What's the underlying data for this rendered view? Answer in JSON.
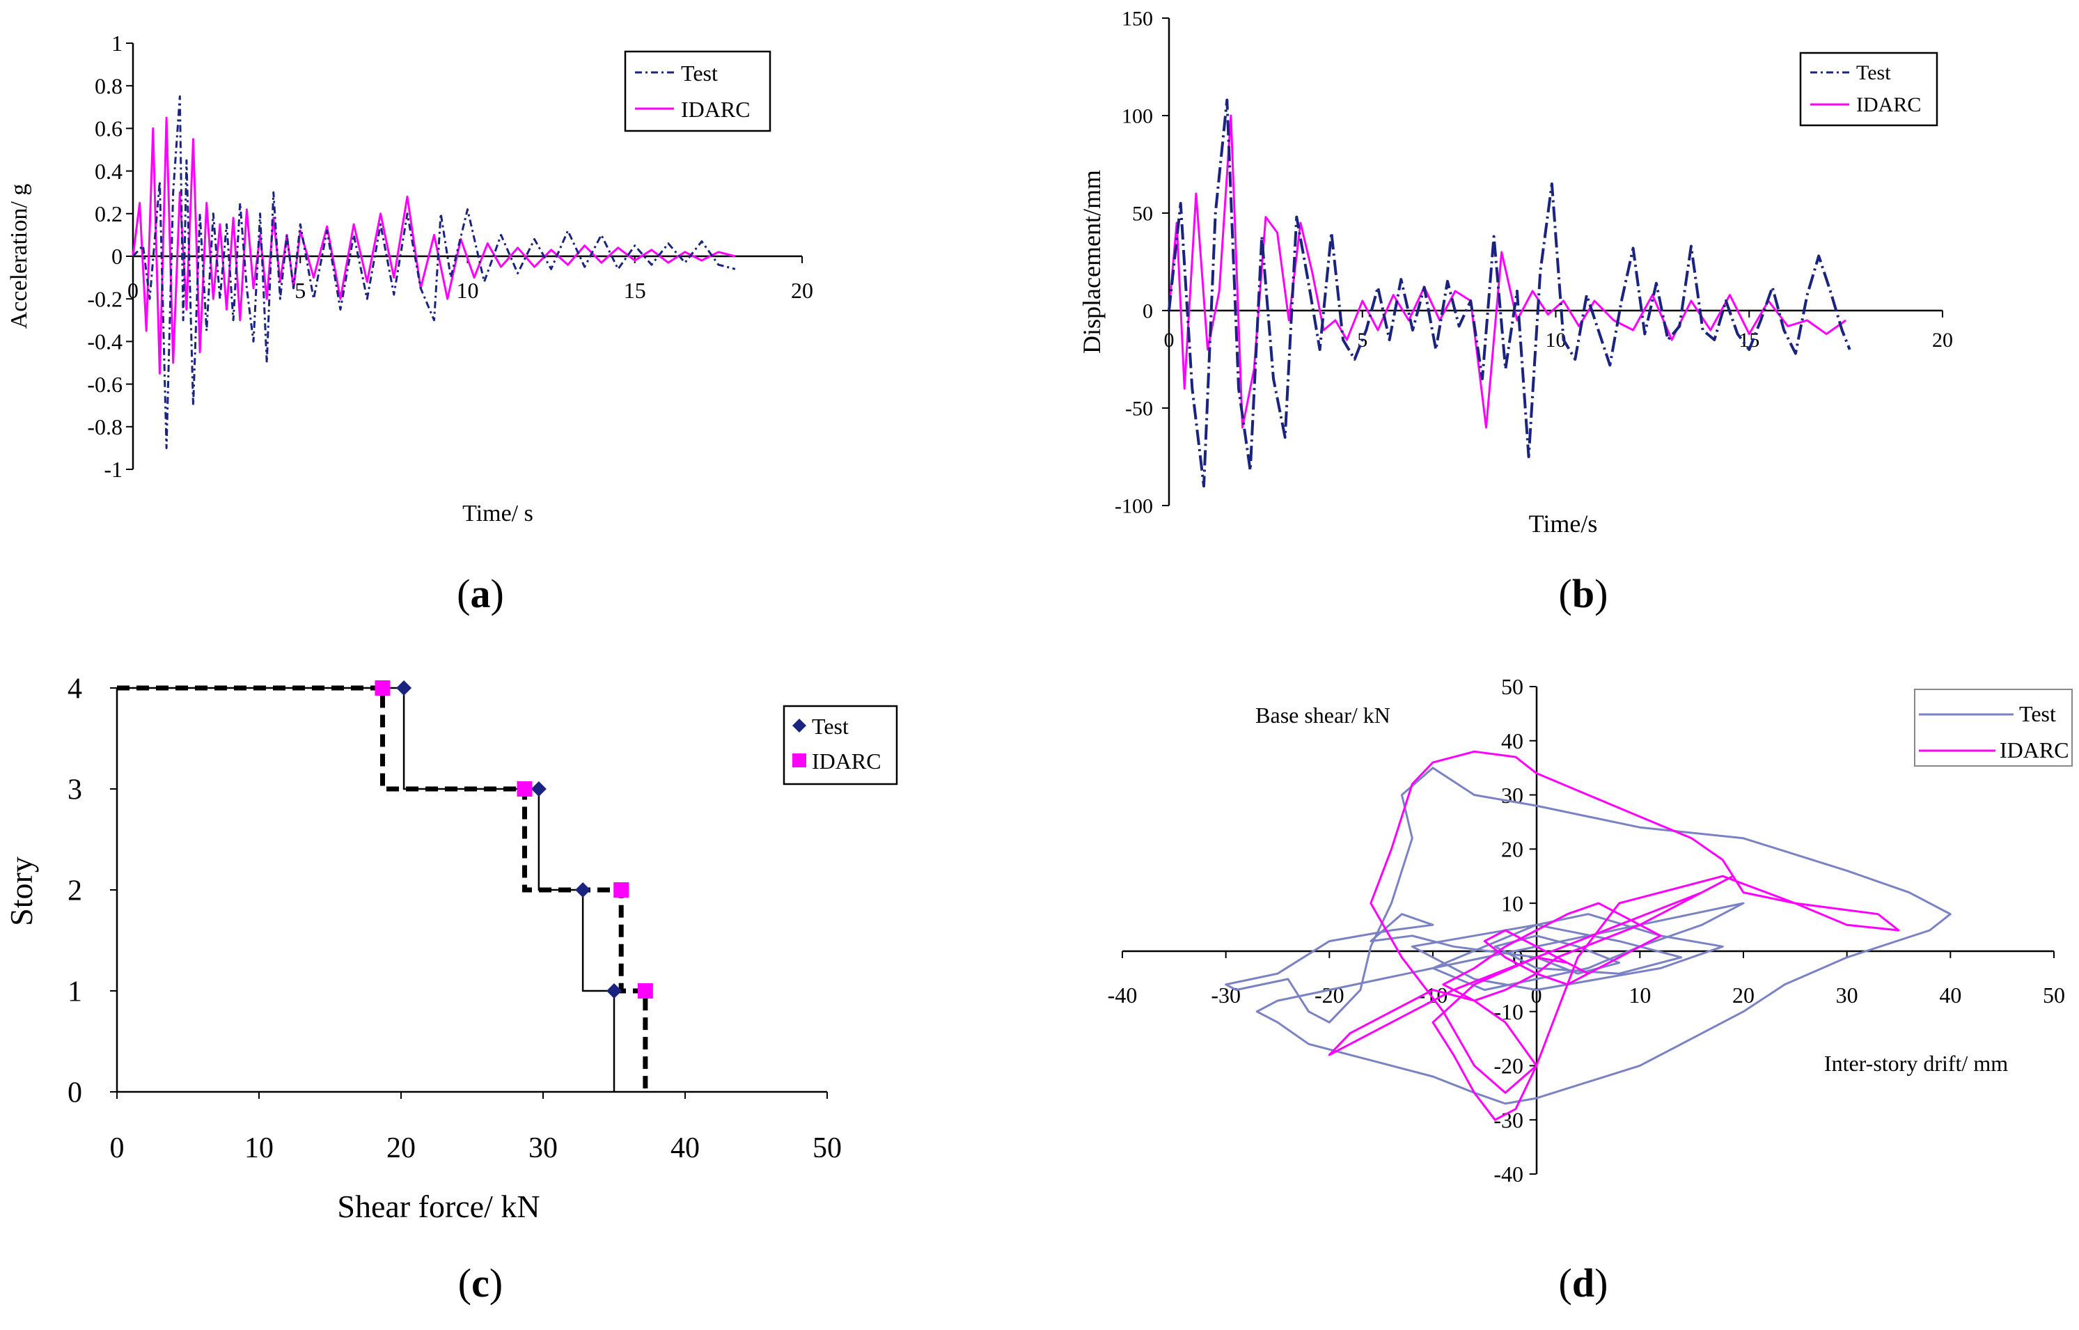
{
  "figure": {
    "panel_labels": [
      "a",
      "b",
      "c",
      "d"
    ],
    "colors": {
      "test": "#1a237e",
      "idarc": "#ff00ff",
      "test_d": "#7b82c4",
      "axis": "#000000",
      "dark": "#000000"
    }
  },
  "chart_data": [
    {
      "id": "a",
      "type": "line",
      "title": "",
      "xlabel": "Time/ s",
      "ylabel": "Acceleration/ g",
      "xlim": [
        0,
        20
      ],
      "ylim": [
        -1,
        1
      ],
      "x_ticks": [
        0,
        5,
        10,
        15,
        20
      ],
      "x_tick_labels": [
        "0",
        "5",
        "10",
        "15",
        "20"
      ],
      "y_ticks": [
        1,
        0.8,
        0.6,
        0.4,
        0.2,
        0,
        -0.2,
        -0.4,
        -0.6,
        -0.8,
        -1
      ],
      "y_tick_labels": [
        "1",
        "0.8",
        "0.6",
        "0.4",
        "0.2",
        "0",
        "-0.2",
        "-0.4",
        "-0.6",
        "-0.8",
        "-1"
      ],
      "legend": [
        "Test",
        "IDARC"
      ],
      "legend_position": "top-right",
      "series": [
        {
          "name": "Test",
          "x": [
            0,
            0.3,
            0.5,
            0.8,
            1.0,
            1.2,
            1.4,
            1.5,
            1.6,
            1.8,
            2.0,
            2.2,
            2.4,
            2.6,
            2.8,
            3.0,
            3.2,
            3.4,
            3.6,
            3.8,
            4.0,
            4.2,
            4.4,
            4.6,
            4.8,
            5.0,
            5.4,
            5.8,
            6.2,
            6.6,
            7.0,
            7.4,
            7.8,
            8.2,
            8.6,
            9.0,
            9.2,
            9.5,
            10.0,
            10.5,
            11.0,
            11.5,
            12.0,
            12.5,
            13.0,
            13.5,
            14.0,
            14.5,
            15.0,
            15.5,
            16.0,
            16.5,
            17.0,
            17.5,
            18.0
          ],
          "y": [
            0,
            0.05,
            -0.2,
            0.35,
            -0.9,
            0.3,
            0.75,
            -0.3,
            0.45,
            -0.7,
            0.2,
            -0.35,
            0.2,
            -0.2,
            0.15,
            -0.3,
            0.25,
            -0.15,
            -0.4,
            0.2,
            -0.5,
            0.3,
            -0.2,
            0.1,
            -0.15,
            0.15,
            -0.2,
            0.12,
            -0.25,
            0.1,
            -0.2,
            0.15,
            -0.18,
            0.2,
            -0.15,
            -0.3,
            0.2,
            -0.1,
            0.22,
            -0.12,
            0.1,
            -0.08,
            0.08,
            -0.06,
            0.12,
            -0.05,
            0.1,
            -0.06,
            0.05,
            -0.04,
            0.06,
            -0.03,
            0.07,
            -0.04,
            -0.06
          ]
        },
        {
          "name": "IDARC",
          "x": [
            0,
            0.2,
            0.4,
            0.6,
            0.8,
            1.0,
            1.2,
            1.4,
            1.6,
            1.8,
            2.0,
            2.2,
            2.4,
            2.6,
            2.8,
            3.0,
            3.2,
            3.4,
            3.6,
            3.8,
            4.0,
            4.2,
            4.4,
            4.6,
            4.8,
            5.0,
            5.4,
            5.8,
            6.2,
            6.6,
            7.0,
            7.4,
            7.8,
            8.2,
            8.6,
            9.0,
            9.4,
            9.8,
            10.2,
            10.6,
            11.0,
            11.5,
            12.0,
            12.5,
            13.0,
            13.5,
            14.0,
            14.5,
            15.0,
            15.5,
            16.0,
            16.5,
            17.0,
            17.5,
            18.0
          ],
          "y": [
            0,
            0.25,
            -0.35,
            0.6,
            -0.55,
            0.65,
            -0.5,
            0.3,
            -0.25,
            0.55,
            -0.45,
            0.25,
            -0.2,
            0.15,
            -0.25,
            0.18,
            -0.3,
            0.22,
            -0.15,
            0.1,
            -0.2,
            0.18,
            -0.12,
            0.1,
            -0.15,
            0.12,
            -0.1,
            0.14,
            -0.2,
            0.15,
            -0.12,
            0.2,
            -0.1,
            0.28,
            -0.15,
            0.1,
            -0.2,
            0.08,
            -0.1,
            0.06,
            -0.05,
            0.04,
            -0.05,
            0.03,
            -0.04,
            0.05,
            -0.03,
            0.04,
            -0.02,
            0.03,
            -0.03,
            0.02,
            -0.02,
            0.02,
            0
          ]
        }
      ]
    },
    {
      "id": "b",
      "type": "line",
      "title": "",
      "xlabel": "Time/s",
      "ylabel": "Displacement/mm",
      "xlim": [
        0,
        20
      ],
      "ylim": [
        -100,
        150
      ],
      "x_ticks": [
        0,
        5,
        10,
        15,
        20
      ],
      "x_tick_labels": [
        "0",
        "5",
        "10",
        "15",
        "20"
      ],
      "y_ticks": [
        150,
        100,
        50,
        0,
        -50,
        -100
      ],
      "y_tick_labels": [
        "150",
        "100",
        "50",
        "0",
        "-50",
        "-100"
      ],
      "legend": [
        "Test",
        "IDARC"
      ],
      "legend_position": "top-right",
      "series": [
        {
          "name": "Test",
          "x": [
            0,
            0.3,
            0.6,
            0.9,
            1.2,
            1.5,
            1.8,
            2.1,
            2.4,
            2.7,
            3.0,
            3.3,
            3.6,
            3.9,
            4.2,
            4.5,
            4.8,
            5.1,
            5.4,
            5.7,
            6.0,
            6.3,
            6.6,
            6.9,
            7.2,
            7.5,
            7.8,
            8.1,
            8.4,
            8.7,
            9.0,
            9.3,
            9.6,
            9.9,
            10.2,
            10.5,
            10.8,
            11.1,
            11.4,
            11.7,
            12.0,
            12.3,
            12.6,
            12.9,
            13.2,
            13.5,
            13.8,
            14.1,
            14.4,
            14.7,
            15.0,
            15.3,
            15.6,
            15.9,
            16.2,
            16.5,
            16.8,
            17.1,
            17.4,
            17.6
          ],
          "y": [
            0,
            55,
            -40,
            -90,
            50,
            108,
            -40,
            -82,
            38,
            -35,
            -65,
            48,
            15,
            -20,
            40,
            -15,
            -25,
            -10,
            12,
            -15,
            16,
            -10,
            12,
            -20,
            15,
            -8,
            5,
            -35,
            38,
            -30,
            10,
            -75,
            20,
            65,
            -15,
            -25,
            8,
            -10,
            -28,
            5,
            32,
            -12,
            14,
            -15,
            -8,
            33,
            -10,
            -15,
            5,
            -12,
            -20,
            -5,
            12,
            -10,
            -22,
            8,
            28,
            10,
            -10,
            -20
          ]
        },
        {
          "name": "IDARC",
          "x": [
            0,
            0.2,
            0.4,
            0.7,
            1.0,
            1.3,
            1.6,
            1.9,
            2.2,
            2.5,
            2.8,
            3.1,
            3.4,
            3.7,
            4.0,
            4.3,
            4.6,
            5.0,
            5.4,
            5.8,
            6.2,
            6.6,
            7.0,
            7.4,
            7.8,
            8.2,
            8.6,
            9.0,
            9.4,
            9.8,
            10.2,
            10.6,
            11.0,
            11.5,
            12.0,
            12.5,
            13.0,
            13.5,
            14.0,
            14.5,
            15.0,
            15.5,
            16.0,
            16.5,
            17.0,
            17.5
          ],
          "y": [
            0,
            45,
            -40,
            60,
            -20,
            10,
            100,
            -60,
            -30,
            48,
            40,
            -5,
            45,
            20,
            -10,
            -5,
            -15,
            5,
            -10,
            8,
            -5,
            12,
            -5,
            10,
            5,
            -60,
            30,
            -5,
            10,
            -2,
            5,
            -8,
            5,
            -5,
            -10,
            8,
            -15,
            5,
            -10,
            8,
            -12,
            5,
            -8,
            -5,
            -12,
            -5
          ]
        }
      ]
    },
    {
      "id": "c",
      "type": "line",
      "title": "",
      "xlabel": "Shear force/ kN",
      "ylabel": "Story",
      "xlim": [
        0,
        50
      ],
      "ylim": [
        0,
        4
      ],
      "x_ticks": [
        0,
        10,
        20,
        30,
        40,
        50
      ],
      "x_tick_labels": [
        "0",
        "10",
        "20",
        "30",
        "40",
        "50"
      ],
      "y_ticks": [
        0,
        1,
        2,
        3,
        4
      ],
      "y_tick_labels": [
        "0",
        "1",
        "2",
        "3",
        "4"
      ],
      "legend": [
        "Test",
        "IDARC"
      ],
      "legend_position": "top-right",
      "series": [
        {
          "name": "Test",
          "story": [
            4,
            3,
            2,
            1
          ],
          "shear": [
            20.2,
            29.7,
            32.8,
            35.0
          ]
        },
        {
          "name": "IDARC",
          "story": [
            4,
            3,
            2,
            1
          ],
          "shear": [
            18.7,
            28.7,
            35.5,
            37.2
          ]
        }
      ]
    },
    {
      "id": "d",
      "type": "line",
      "title": "",
      "xlabel": "Inter-story drift/ mm",
      "ylabel": "Base shear/ kN",
      "xlim": [
        -40,
        50
      ],
      "ylim": [
        -40,
        50
      ],
      "x_ticks": [
        -40,
        -30,
        -20,
        -10,
        0,
        10,
        20,
        30,
        40,
        50
      ],
      "x_tick_labels": [
        "-40",
        "-30",
        "-20",
        "-10",
        "0",
        "10",
        "20",
        "30",
        "40",
        "50"
      ],
      "y_ticks": [
        50,
        40,
        30,
        20,
        10,
        0,
        -10,
        -20,
        -30,
        -40
      ],
      "y_tick_labels": [
        "50",
        "40",
        "30",
        "20",
        "10",
        "0",
        "-10",
        "-20",
        "-30",
        "-40"
      ],
      "legend": [
        "Test",
        "IDARC"
      ],
      "legend_position": "top-right",
      "series": [
        {
          "name": "Test",
          "x": [
            0,
            -8,
            -12,
            -16,
            -13,
            -10,
            -14,
            -20,
            -25,
            -30,
            -29,
            -24,
            -22,
            -20,
            -19,
            -17,
            -16,
            -14,
            -12,
            -13,
            -10,
            -6,
            0,
            10,
            20,
            30,
            36,
            40,
            38,
            30,
            24,
            20,
            15,
            10,
            0,
            -3,
            -6,
            -10,
            -14,
            -18,
            -22,
            -25,
            -27,
            -25,
            -20,
            -15,
            -10,
            -5,
            0,
            5,
            10,
            15,
            20,
            16,
            10,
            5,
            0,
            -5,
            -10,
            -5,
            0,
            5,
            12,
            18,
            12,
            6,
            0,
            -6,
            -12,
            -6,
            0,
            8,
            14,
            8,
            0,
            -4,
            0,
            4,
            8,
            4,
            0
          ],
          "y": [
            0,
            2,
            4,
            3,
            8,
            6,
            5,
            3,
            -3,
            -5,
            -6,
            -4,
            -10,
            -12,
            -10,
            -6,
            2,
            10,
            22,
            30,
            35,
            30,
            28,
            24,
            22,
            16,
            12,
            8,
            5,
            0,
            -5,
            -10,
            -15,
            -20,
            -26,
            -27,
            -25,
            -22,
            -20,
            -18,
            -16,
            -12,
            -10,
            -8,
            -6,
            -4,
            -2,
            0,
            2,
            4,
            6,
            8,
            10,
            6,
            2,
            -2,
            -4,
            -6,
            -2,
            2,
            6,
            8,
            4,
            2,
            -2,
            -4,
            -6,
            -4,
            2,
            4,
            6,
            3,
            0,
            -3,
            -2,
            2,
            4,
            2,
            -1,
            -3,
            0
          ]
        },
        {
          "name": "IDARC",
          "x": [
            0,
            -6,
            -10,
            -8,
            -6,
            -4,
            -2,
            0,
            2,
            4,
            6,
            8,
            12,
            18,
            25,
            33,
            35,
            30,
            25,
            20,
            18,
            15,
            10,
            5,
            0,
            -2,
            -6,
            -10,
            -12,
            -14,
            -16,
            -13,
            -9,
            -6,
            -3,
            0,
            -3,
            -6,
            -10,
            -14,
            -18,
            -20,
            -16,
            -12,
            -8,
            -4,
            0,
            4,
            8,
            12,
            16,
            19,
            14,
            10,
            6,
            2,
            0,
            -3,
            -6,
            -9,
            -6,
            -3,
            0,
            3,
            6,
            9,
            12,
            9,
            6,
            3,
            0,
            -3,
            -5,
            -3,
            0,
            3,
            5,
            3,
            0
          ],
          "y": [
            0,
            -5,
            -12,
            -18,
            -25,
            -30,
            -28,
            -20,
            -10,
            0,
            5,
            10,
            12,
            15,
            10,
            8,
            5,
            6,
            10,
            12,
            18,
            22,
            26,
            30,
            34,
            37,
            38,
            36,
            32,
            20,
            10,
            0,
            -10,
            -20,
            -25,
            -20,
            -12,
            -8,
            -6,
            -10,
            -14,
            -18,
            -14,
            -10,
            -6,
            -3,
            0,
            3,
            6,
            9,
            12,
            15,
            10,
            6,
            3,
            0,
            -3,
            -6,
            -8,
            -5,
            -2,
            2,
            5,
            8,
            10,
            7,
            4,
            1,
            -2,
            -5,
            -3,
            0,
            3,
            5,
            2,
            -1,
            -3,
            -1,
            0
          ]
        }
      ]
    }
  ]
}
